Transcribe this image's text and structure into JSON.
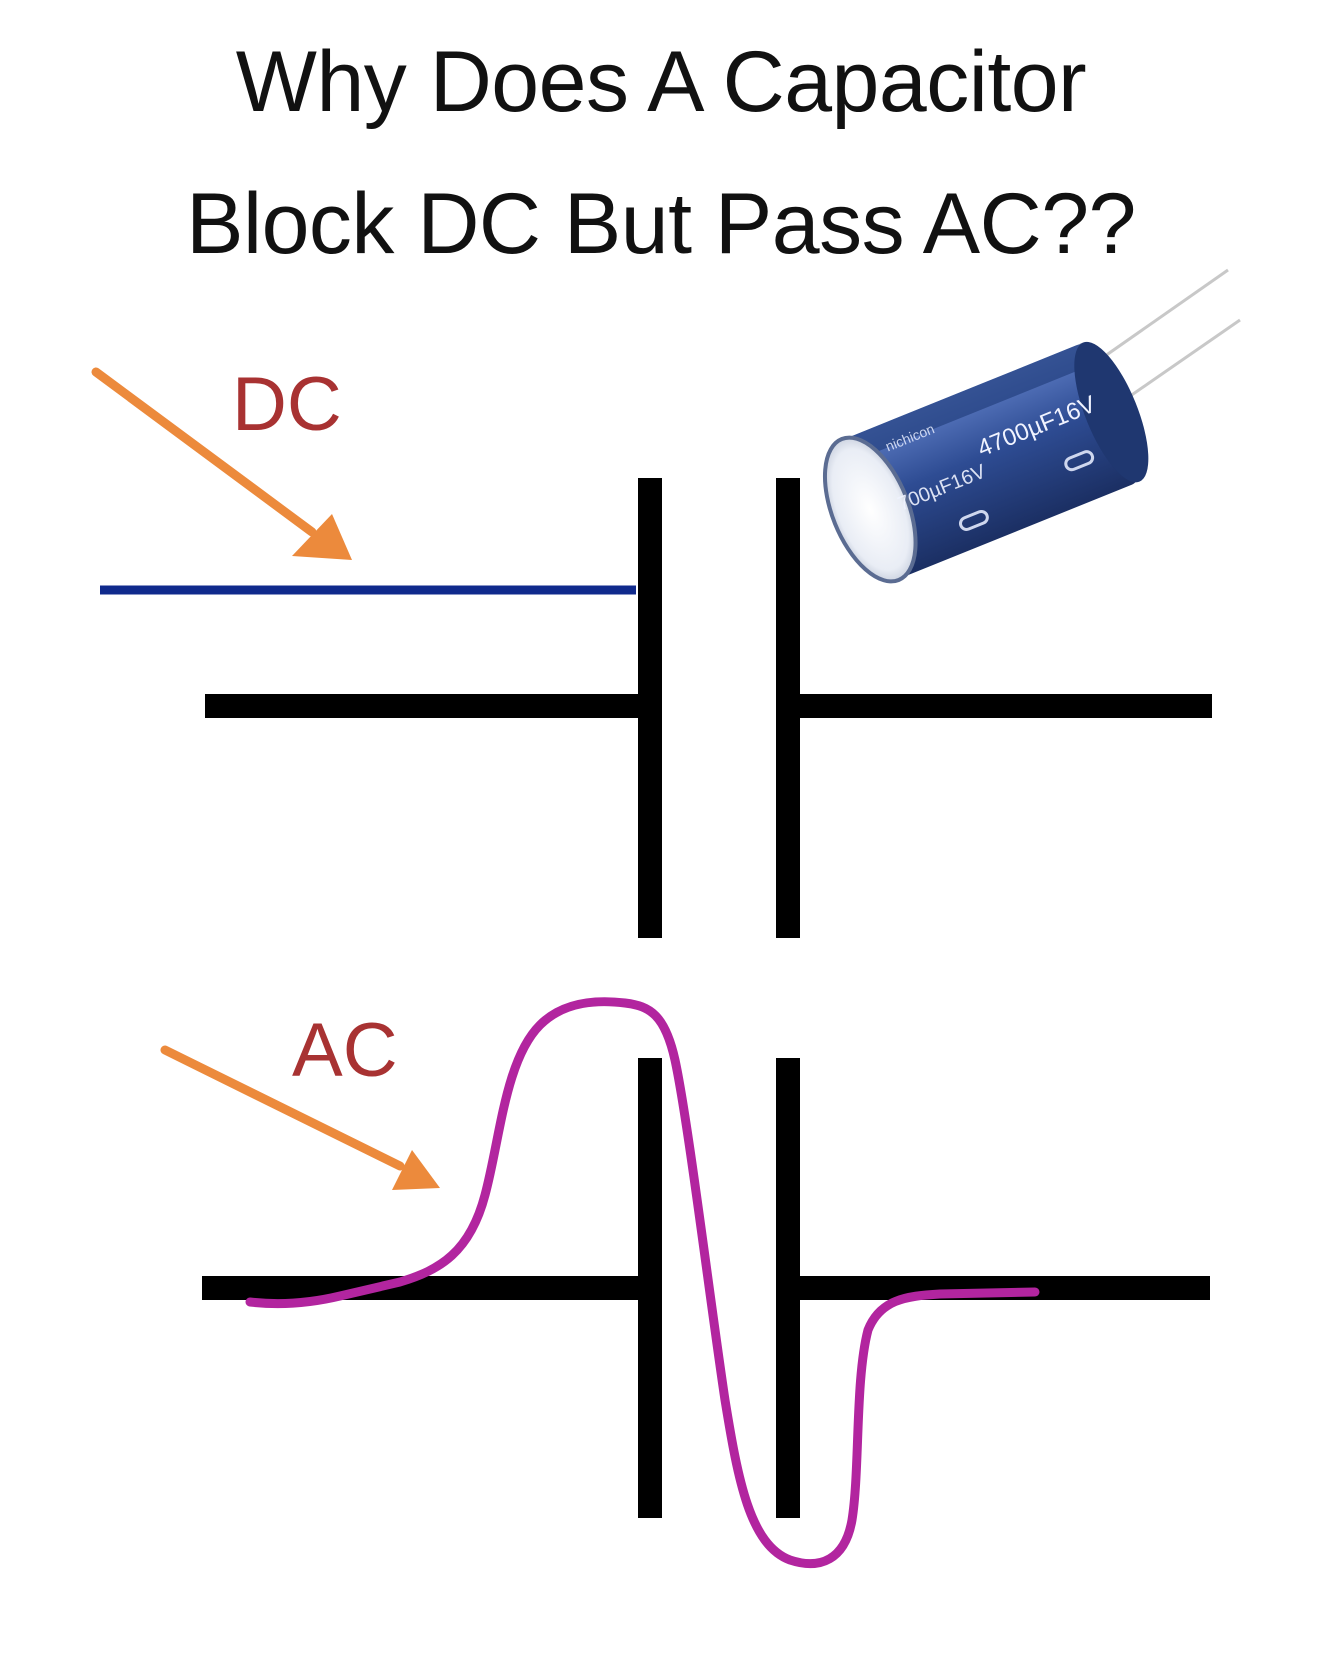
{
  "title": {
    "line1": "Why Does A Capacitor",
    "line2": "Block DC But Pass AC??"
  },
  "labels": {
    "dc": "DC",
    "ac": "AC"
  },
  "capacitor_photo": {
    "markings": [
      "nichicon",
      "4700µF16V",
      "700µF16V"
    ]
  },
  "colors": {
    "title_text": "#111111",
    "label_text": "#a83232",
    "arrow": "#ec8a3c",
    "dc_signal": "#102a8c",
    "ac_signal": "#b2259f",
    "symbol": "#000000",
    "capacitor_body": "#2e4c93"
  }
}
